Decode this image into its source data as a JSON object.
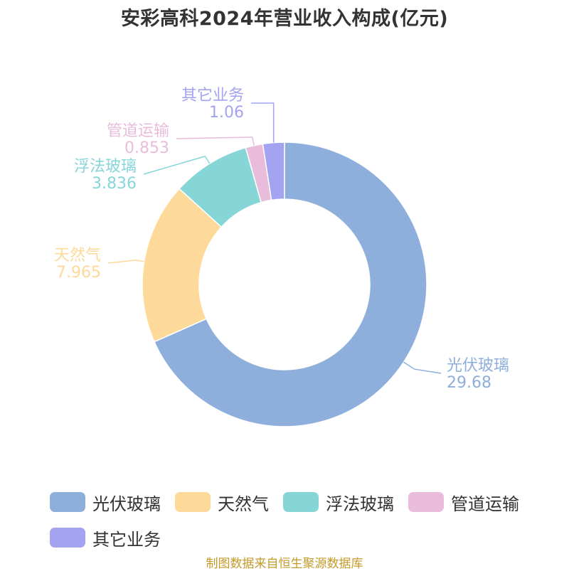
{
  "title": "安彩高科2024年营业收入构成(亿元)",
  "source": "制图数据来自恒生聚源数据库",
  "chart_data": {
    "type": "pie",
    "donut": true,
    "categories": [
      "光伏玻璃",
      "天然气",
      "浮法玻璃",
      "管道运输",
      "其它业务"
    ],
    "values": [
      29.68,
      7.965,
      3.836,
      0.853,
      1.06
    ],
    "value_labels": [
      "29.68",
      "7.965",
      "3.836",
      "0.853",
      "1.06"
    ],
    "colors": [
      "#8eaedb",
      "#fdd99a",
      "#86d6d8",
      "#e9bcdb",
      "#a3a3f2"
    ],
    "legend_position": "bottom",
    "start": "top",
    "direction": "clockwise"
  }
}
